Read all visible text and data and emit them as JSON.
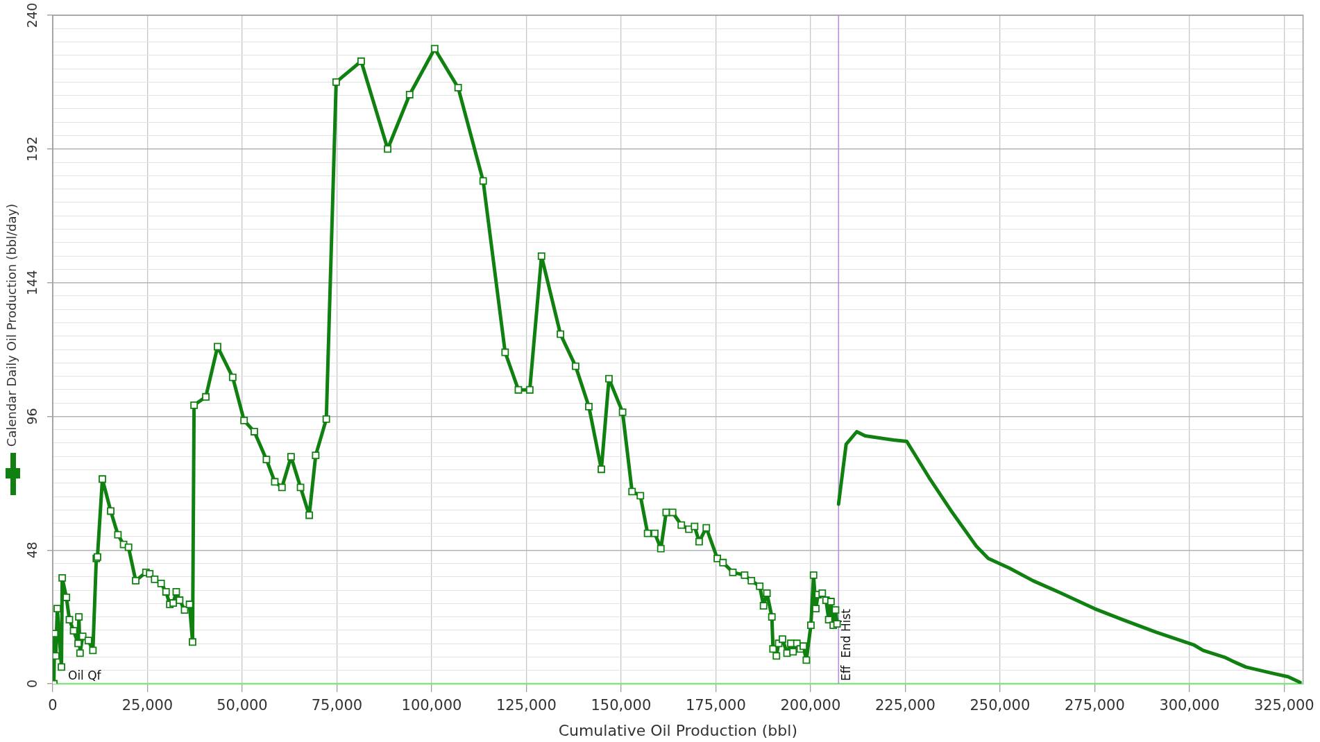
{
  "chart_data": {
    "type": "line",
    "xlabel": "Cumulative Oil Production (bbl)",
    "ylabel": "Calendar Daily Oil Production (bbl/day)",
    "xlim": [
      0,
      330000
    ],
    "ylim": [
      0,
      240
    ],
    "xticks": [
      0,
      {
        "value": 25000,
        "label": "25,000"
      },
      {
        "value": 50000,
        "label": "50,000"
      },
      {
        "value": 75000,
        "label": "75,000"
      },
      {
        "value": 100000,
        "label": "100,000"
      },
      {
        "value": 125000,
        "label": "125,000"
      },
      {
        "value": 150000,
        "label": "150,000"
      },
      {
        "value": 175000,
        "label": "175,000"
      },
      {
        "value": 200000,
        "label": "200,000"
      },
      {
        "value": 225000,
        "label": "225,000"
      },
      {
        "value": 250000,
        "label": "250,000"
      },
      {
        "value": 275000,
        "label": "275,000"
      },
      {
        "value": 300000,
        "label": "300,000"
      },
      {
        "value": 325000,
        "label": "325,000"
      }
    ],
    "yticks": [
      0,
      {
        "value": 4.8,
        "label": null
      },
      {
        "value": 9.6,
        "label": null
      },
      {
        "value": 14.4,
        "label": null
      },
      {
        "value": 19.2,
        "label": null
      },
      {
        "value": 24,
        "label": null
      },
      {
        "value": 28.8,
        "label": null
      },
      {
        "value": 33.6,
        "label": null
      },
      {
        "value": 38.4,
        "label": null
      },
      {
        "value": 43.2,
        "label": null
      },
      48,
      {
        "value": 52.8,
        "label": null
      },
      {
        "value": 57.6,
        "label": null
      },
      {
        "value": 62.4,
        "label": null
      },
      {
        "value": 67.2,
        "label": null
      },
      {
        "value": 72,
        "label": null
      },
      {
        "value": 76.8,
        "label": null
      },
      {
        "value": 81.6,
        "label": null
      },
      {
        "value": 86.4,
        "label": null
      },
      {
        "value": 91.2,
        "label": null
      },
      96,
      {
        "value": 100.8,
        "label": null
      },
      {
        "value": 105.6,
        "label": null
      },
      {
        "value": 110.4,
        "label": null
      },
      {
        "value": 115.2,
        "label": null
      },
      {
        "value": 120,
        "label": null
      },
      {
        "value": 124.8,
        "label": null
      },
      {
        "value": 129.6,
        "label": null
      },
      {
        "value": 134.4,
        "label": null
      },
      {
        "value": 139.2,
        "label": null
      },
      144,
      {
        "value": 148.8,
        "label": null
      },
      {
        "value": 153.6,
        "label": null
      },
      {
        "value": 158.4,
        "label": null
      },
      {
        "value": 163.2,
        "label": null
      },
      {
        "value": 168,
        "label": null
      },
      {
        "value": 172.8,
        "label": null
      },
      {
        "value": 177.6,
        "label": null
      },
      {
        "value": 182.4,
        "label": null
      },
      {
        "value": 187.2,
        "label": null
      },
      192,
      {
        "value": 196.8,
        "label": null
      },
      {
        "value": 201.6,
        "label": null
      },
      {
        "value": 206.4,
        "label": null
      },
      {
        "value": 211.2,
        "label": null
      },
      {
        "value": 216,
        "label": null
      },
      {
        "value": 220.8,
        "label": null
      },
      {
        "value": 225.6,
        "label": null
      },
      {
        "value": 230.4,
        "label": null
      },
      {
        "value": 235.2,
        "label": null
      },
      240
    ],
    "grid": true,
    "series": [
      {
        "color": "#108010",
        "marker": "square",
        "x": [
          300,
          500,
          800,
          1200,
          2300,
          2500,
          3600,
          4400,
          5500,
          6700,
          6900,
          7200,
          7900,
          9400,
          10600,
          11500,
          11800,
          13100,
          15300,
          17200,
          18700,
          20000,
          21900,
          24600,
          25600,
          26900,
          28600,
          29900,
          30900,
          31800,
          32600,
          33500,
          34800,
          36100,
          36900,
          37300,
          40400,
          43500,
          47500,
          50500,
          53200,
          56400,
          58600,
          60500,
          62900,
          65400,
          67700,
          69400,
          72200,
          74800,
          81400,
          88400,
          94200,
          100800,
          107000,
          113600,
          119400,
          122900,
          125900,
          129000,
          134000,
          138000,
          141500,
          144800,
          146800,
          150400,
          152900,
          155100,
          157000,
          158900,
          160500,
          161900,
          163600,
          165900,
          167900,
          169400,
          170600,
          172500,
          175400,
          176900,
          179500,
          182600,
          184400,
          186600,
          187600,
          188500,
          189800,
          190100,
          191000,
          191600,
          192600,
          193800,
          194800,
          195400,
          196400,
          197300,
          198100,
          198900,
          200100,
          200800,
          201400,
          202000,
          203100,
          204100,
          204800,
          205400,
          206000,
          206600,
          207000
        ],
        "values": [
          0,
          18,
          10,
          27,
          6,
          38,
          31,
          23,
          19,
          14.5,
          24,
          11,
          17,
          15.5,
          12,
          45,
          45.5,
          73.5,
          62,
          53.5,
          50,
          49,
          37,
          40,
          39.5,
          37.5,
          36,
          33,
          28.5,
          29,
          33,
          30,
          26.5,
          28.5,
          15,
          100,
          103,
          121,
          110,
          94.5,
          90.5,
          80.5,
          72.5,
          70.5,
          81.5,
          70.5,
          60.5,
          82,
          95,
          216,
          223.5,
          192,
          211.5,
          228,
          214,
          180.5,
          119,
          105.5,
          105.5,
          153.5,
          125.5,
          114,
          99.5,
          77,
          109.5,
          97.5,
          69,
          67.5,
          54,
          54,
          48.5,
          61.5,
          61.5,
          57,
          55.5,
          56.5,
          51,
          56,
          45,
          43.5,
          40,
          39,
          37,
          35,
          28,
          32.5,
          24,
          12.5,
          10,
          14.5,
          16,
          11,
          14.5,
          11.5,
          14.5,
          12.5,
          13.5,
          8.5,
          21,
          39,
          27,
          32,
          32.5,
          30,
          23,
          29.5,
          21,
          26.5,
          21.5
        ]
      },
      {
        "color": "#108010",
        "marker": "none",
        "x": [
          207400,
          209400,
          212200,
          214400,
          221900,
          225400,
          231300,
          236900,
          243700,
          246900,
          252500,
          258700,
          266200,
          274900,
          282400,
          291200,
          301100,
          303600,
          309300,
          312400,
          314900,
          321100,
          326100,
          329200
        ],
        "values": [
          64.5,
          86,
          90.5,
          89,
          87.5,
          87,
          74,
          62.5,
          49.5,
          45,
          41.5,
          37,
          32.5,
          27,
          23,
          18.5,
          14,
          12,
          9.5,
          7.5,
          6,
          4,
          2.5,
          0.5
        ]
      }
    ],
    "ref_lines": [
      {
        "axis": "y",
        "value": 0,
        "label": "Oil Qf",
        "color": "#84e184"
      },
      {
        "axis": "x",
        "value": 207400,
        "label": "Eff  End Hist",
        "color": "#b48be6"
      }
    ]
  }
}
